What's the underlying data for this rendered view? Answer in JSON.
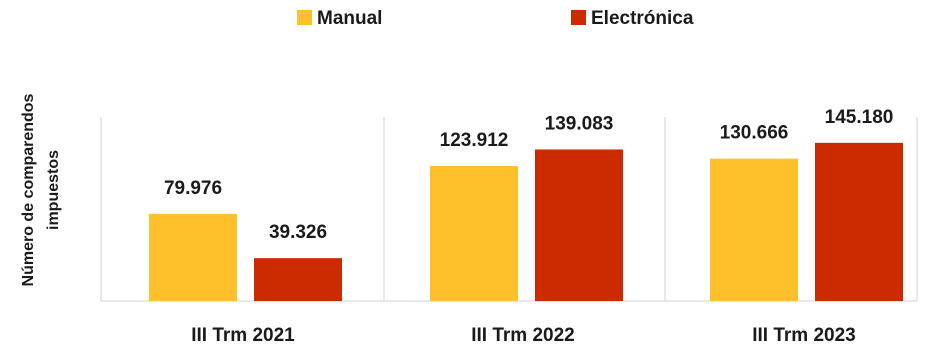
{
  "chart_data": {
    "type": "bar",
    "title": "",
    "xlabel": "",
    "ylabel": "Número de comparendos impuestos",
    "ylabel_lines": [
      "Número de comparendos",
      "impuestos"
    ],
    "categories": [
      "III Trm 2021",
      "III Trm 2022",
      "III Trm 2023"
    ],
    "series": [
      {
        "name": "Manual",
        "color": "#FFC12B",
        "values": [
          79976,
          123912,
          130666
        ],
        "labels": [
          "79.976",
          "123.912",
          "130.666"
        ]
      },
      {
        "name": "Electrónica",
        "color": "#CC2A00",
        "values": [
          39326,
          139083,
          145180
        ],
        "labels": [
          "39.326",
          "139.083",
          "145.180"
        ]
      }
    ],
    "ylim": [
      0,
      190000
    ],
    "grid": false,
    "legend_position": "top-center"
  }
}
